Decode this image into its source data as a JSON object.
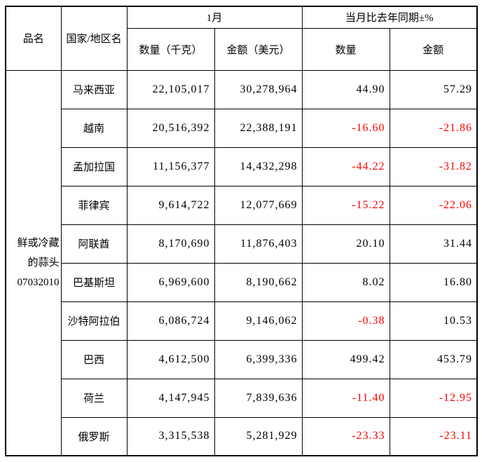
{
  "colors": {
    "text": "#000000",
    "negative_value": "#ff0000",
    "border": "#000000",
    "background": "#ffffff"
  },
  "table": {
    "header": {
      "product_col": "品名",
      "country_col": "国家/地区名",
      "month_group": "1月",
      "yoy_group": "当月比去年同期±%",
      "qty_kg": "数量（千克）",
      "amount_usd": "金额（美元）",
      "qty_pct": "数量",
      "amount_pct": "金额"
    },
    "product_cell": "鲜或冷藏\n的蒜头\n07032010"
  },
  "chart_data": {
    "type": "table",
    "product_name": "鲜或冷藏的蒜头",
    "product_code": "07032010",
    "column_groups": [
      {
        "label": "1月",
        "columns": [
          "数量（千克）",
          "金额（美元）"
        ]
      },
      {
        "label": "当月比去年同期±%",
        "columns": [
          "数量",
          "金额"
        ]
      }
    ],
    "row_header_columns": [
      "品名",
      "国家/地区名"
    ],
    "negative_values_shown_in_red": true,
    "rows": [
      {
        "country": "马来西亚",
        "qty_kg": 22105017,
        "amount_usd": 30278964,
        "qty_yoy_pct": 44.9,
        "amount_yoy_pct": 57.29
      },
      {
        "country": "越南",
        "qty_kg": 20516392,
        "amount_usd": 22388191,
        "qty_yoy_pct": -16.6,
        "amount_yoy_pct": -21.86
      },
      {
        "country": "孟加拉国",
        "qty_kg": 11156377,
        "amount_usd": 14432298,
        "qty_yoy_pct": -44.22,
        "amount_yoy_pct": -31.82
      },
      {
        "country": "菲律宾",
        "qty_kg": 9614722,
        "amount_usd": 12077669,
        "qty_yoy_pct": -15.22,
        "amount_yoy_pct": -22.06
      },
      {
        "country": "阿联酋",
        "qty_kg": 8170690,
        "amount_usd": 11876403,
        "qty_yoy_pct": 20.1,
        "amount_yoy_pct": 31.44
      },
      {
        "country": "巴基斯坦",
        "qty_kg": 6969600,
        "amount_usd": 8190662,
        "qty_yoy_pct": 8.02,
        "amount_yoy_pct": 16.8
      },
      {
        "country": "沙特阿拉伯",
        "qty_kg": 6086724,
        "amount_usd": 9146062,
        "qty_yoy_pct": -0.38,
        "amount_yoy_pct": 10.53
      },
      {
        "country": "巴西",
        "qty_kg": 4612500,
        "amount_usd": 6399336,
        "qty_yoy_pct": 499.42,
        "amount_yoy_pct": 453.79
      },
      {
        "country": "荷兰",
        "qty_kg": 4147945,
        "amount_usd": 7839636,
        "qty_yoy_pct": -11.4,
        "amount_yoy_pct": -12.95
      },
      {
        "country": "俄罗斯",
        "qty_kg": 3315538,
        "amount_usd": 5281929,
        "qty_yoy_pct": -23.33,
        "amount_yoy_pct": -23.11
      }
    ]
  }
}
